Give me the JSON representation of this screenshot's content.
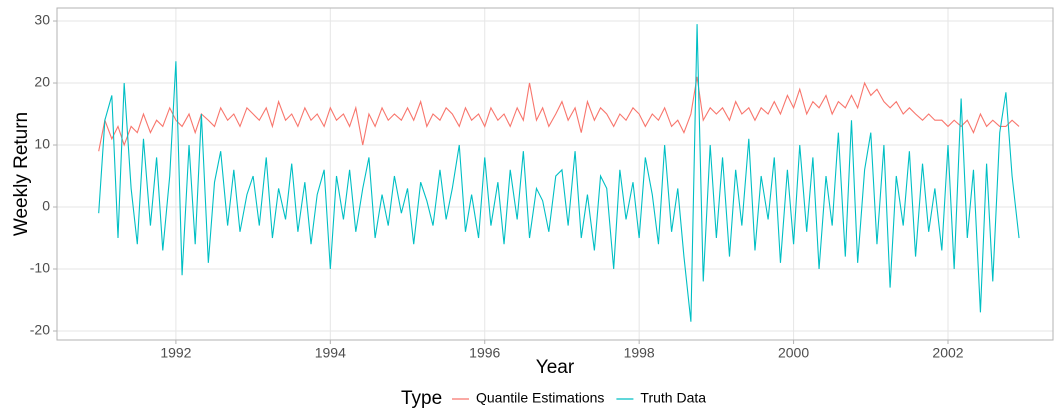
{
  "chart_data": {
    "type": "line",
    "x_label": "Year",
    "y_label": "Weekly Return",
    "legend_title": "Type",
    "legend_position": "bottom",
    "grid": true,
    "xlim": [
      1990.46,
      2003.36
    ],
    "xticks": [
      1992,
      1994,
      1996,
      1998,
      2000,
      2002
    ],
    "ylim": [
      -21.45,
      32.1
    ],
    "yticks": [
      -20,
      -10,
      0,
      10,
      20,
      30
    ],
    "x": [
      1991,
      1991.08,
      1991.17,
      1991.25,
      1991.33,
      1991.42,
      1991.5,
      1991.58,
      1991.67,
      1991.75,
      1991.83,
      1991.92,
      1992,
      1992.08,
      1992.17,
      1992.25,
      1992.33,
      1992.42,
      1992.5,
      1992.58,
      1992.67,
      1992.75,
      1992.83,
      1992.92,
      1993,
      1993.08,
      1993.17,
      1993.25,
      1993.33,
      1993.42,
      1993.5,
      1993.58,
      1993.67,
      1993.75,
      1993.83,
      1993.92,
      1994,
      1994.08,
      1994.17,
      1994.25,
      1994.33,
      1994.42,
      1994.5,
      1994.58,
      1994.67,
      1994.75,
      1994.83,
      1994.92,
      1995,
      1995.08,
      1995.17,
      1995.25,
      1995.33,
      1995.42,
      1995.5,
      1995.58,
      1995.67,
      1995.75,
      1995.83,
      1995.92,
      1996,
      1996.08,
      1996.17,
      1996.25,
      1996.33,
      1996.42,
      1996.5,
      1996.58,
      1996.67,
      1996.75,
      1996.83,
      1996.92,
      1997,
      1997.08,
      1997.17,
      1997.25,
      1997.33,
      1997.42,
      1997.5,
      1997.58,
      1997.67,
      1997.75,
      1997.83,
      1997.92,
      1998,
      1998.08,
      1998.17,
      1998.25,
      1998.33,
      1998.42,
      1998.5,
      1998.58,
      1998.67,
      1998.75,
      1998.83,
      1998.92,
      1999,
      1999.08,
      1999.17,
      1999.25,
      1999.33,
      1999.42,
      1999.5,
      1999.58,
      1999.67,
      1999.75,
      1999.83,
      1999.92,
      2000,
      2000.08,
      2000.17,
      2000.25,
      2000.33,
      2000.42,
      2000.5,
      2000.58,
      2000.67,
      2000.75,
      2000.83,
      2000.92,
      2001,
      2001.08,
      2001.17,
      2001.25,
      2001.33,
      2001.42,
      2001.5,
      2001.58,
      2001.67,
      2001.75,
      2001.83,
      2001.92,
      2002,
      2002.08,
      2002.17,
      2002.25,
      2002.33,
      2002.42,
      2002.5,
      2002.58,
      2002.67,
      2002.75,
      2002.83,
      2002.92
    ],
    "series": [
      {
        "name": "Quantile Estimations",
        "color": "#F8766D",
        "values": [
          9,
          14,
          11,
          13,
          10,
          13,
          12,
          15,
          12,
          14,
          13,
          16,
          14,
          13,
          15,
          12,
          15,
          14,
          13,
          16,
          14,
          15,
          13,
          16,
          15,
          14,
          16,
          13,
          17,
          14,
          15,
          13,
          16,
          14,
          15,
          13,
          16,
          14,
          15,
          13,
          16,
          10,
          15,
          13,
          16,
          14,
          15,
          14,
          16,
          14,
          17,
          13,
          15,
          14,
          16,
          15,
          13,
          16,
          14,
          15,
          13,
          16,
          14,
          15,
          13,
          16,
          14,
          20,
          14,
          16,
          13,
          15,
          17,
          14,
          16,
          12,
          17,
          14,
          16,
          15,
          13,
          15,
          14,
          16,
          15,
          13,
          15,
          14,
          16,
          13,
          14,
          12,
          15,
          21,
          14,
          16,
          15,
          16,
          14,
          17,
          15,
          16,
          14,
          16,
          15,
          17,
          15,
          18,
          16,
          19,
          15,
          17,
          16,
          18,
          15,
          17,
          16,
          18,
          16,
          20,
          18,
          19,
          17,
          16,
          17,
          15,
          16,
          15,
          14,
          15,
          14,
          14,
          13,
          14,
          13,
          14,
          12,
          15,
          13,
          14,
          13,
          13,
          14,
          13
        ]
      },
      {
        "name": "Truth Data",
        "color": "#00BFC4",
        "values": [
          -1,
          14,
          18,
          -5,
          20,
          3,
          -6,
          11,
          -3,
          8,
          -7,
          5,
          23.5,
          -11,
          10,
          -6,
          15,
          -9,
          4,
          9,
          -3,
          6,
          -4,
          2,
          5,
          -3,
          8,
          -5,
          3,
          -2,
          7,
          -4,
          4,
          -6,
          2,
          6,
          -10,
          5,
          -2,
          6,
          -4,
          3,
          8,
          -5,
          2,
          -3,
          5,
          -1,
          3,
          -6,
          4,
          1,
          -3,
          6,
          -2,
          3,
          10,
          -4,
          2,
          -5,
          8,
          -3,
          4,
          -6,
          6,
          -2,
          9,
          -5,
          3,
          1,
          -4,
          5,
          6,
          -3,
          9,
          -5,
          2,
          -7,
          5,
          3,
          -10,
          6,
          -2,
          4,
          -5,
          8,
          2,
          -6,
          10,
          -4,
          3,
          -8,
          -18.5,
          29.5,
          -12,
          10,
          -5,
          8,
          -8,
          6,
          -3,
          11,
          -7,
          5,
          -2,
          8,
          -9,
          6,
          -6,
          10,
          -4,
          8,
          -10,
          5,
          -3,
          12,
          -8,
          14,
          -9,
          6,
          12,
          -6,
          10,
          -13,
          5,
          -3,
          9,
          -8,
          7,
          -4,
          3,
          -7,
          10,
          -10,
          17.5,
          -5,
          6,
          -17,
          7,
          -12,
          12,
          18.5,
          5,
          -5
        ]
      }
    ]
  }
}
